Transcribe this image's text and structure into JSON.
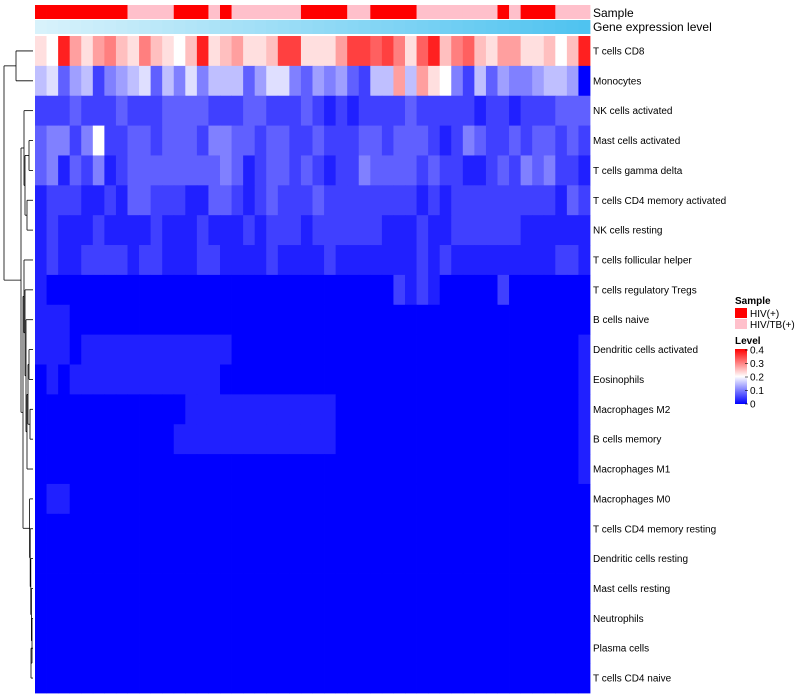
{
  "chart_data": {
    "type": "heatmap",
    "annotation_tracks": [
      "Sample",
      "Gene expression level"
    ],
    "rows": [
      "T cells CD8",
      "Monocytes",
      "NK cells activated",
      "Mast cells activated",
      "T cells gamma delta",
      "T cells CD4 memory activated",
      "NK cells resting",
      "T cells follicular helper",
      "T cells regulatory  Tregs",
      "B cells naive",
      "Dendritic cells activated",
      "Eosinophils",
      "Macrophages M2",
      "B cells memory",
      "Macrophages M1",
      "Macrophages M0",
      "T cells CD4 memory resting",
      "Dendritic cells resting",
      "Mast cells resting",
      "Neutrophils",
      "Plasma cells",
      "T cells CD4 naive"
    ],
    "sample_groups": "HHHHHHHHPPPPHHHPHPPPPPPHHHHPPHHHHPPPPPPPHPHHHPP",
    "matrix": [
      "JIPLJLMKJMKJIKPJKLJJKOOJJJLOONOMJNPKMNKJLLJJKIKP",
      "GHDFGCEFGHDGEHEGGGDFHHEDFEFDCGGLGLJIECGDFEEFGGFA",
      "CCCDCCCDCCCDDDDCCCDDCCCDCBCBCCCCDCCCCCBCCBCCCDDD",
      "DEECEICCDDCDDDCEEDDCDDCCDCCCDDCDDDCBCEDCCDCDDCDC",
      "DEBDCEBCDDDDDDDDEDBCDDCDCBCCEDDDDCDCCBBCDCEDECCB",
      "BCCCBBCBDDCCCBBDDCBCDCCCDCCCCCCCCBCBCCCCCCCCCBDC",
      "BCBBBCBBBBCBBBCBBBCBCCCBCCCCCCBBBCBBCCCCCCBBBBBB",
      "BCBBCCCCBCCBBBCCBBBBCBBBBCBBBBBBBCBCBBBBBBBBBCCB",
      "BAAAAAAAAAAAAAAAAAAAAAAAAAAAAAACBCBAAAAACAAAAAAA",
      "BBBAAAAAAAAAAAAAAAAAAAAAAAAAAAAAAAAAAAAAAAAAAAAA",
      "BBBABBBBBBBBBBBBBAAAAAAAAAAAAAAAAAAAAAAAAAAAAAAB",
      "ABABBBBBBBBBBBBBAAAAAAAAAAAAAAAAAAAAAAAAAAAAAAAB",
      "AAAAAAAAAAAAABBBBBBBBBBBBBAAAAAAAAAAAAAAAAAAAAAB",
      "AAAAAAAAAAAABBBBBBBBBBBBBBAAAAAAAAAAAAAAAAAAAAAB",
      "AAAAAAAAAAAAAAAAAAAAAAAAAAAAAAAAAAAAAAAAAAAAAAAB",
      "ABBAAAAAAAAAAAAAAAAAAAAAAAAAAAAAAAAAAAAAAAAAAAAA",
      "AAAAAAAAAAAAAAAAAAAAAAAAAAAAAAAAAAAAAAAAAAAAAAAA",
      "AAAAAAAAAAAAAAAAAAAAAAAAAAAAAAAAAAAAAAAAAAAAAAAA",
      "AAAAAAAAAAAAAAAAAAAAAAAAAAAAAAAAAAAAAAAAAAAAAAAA",
      "AAAAAAAAAAAAAAAAAAAAAAAAAAAAAAAAAAAAAAAAAAAAAAAA",
      "AAAAAAAAAAAAAAAAAAAAAAAAAAAAAAAAAAAAAAAAAAAAAAAA",
      "AAAAAAAAAAAAAAAAAAAAAAAAAAAAAAAAAAAAAAAAAAAAAAAA"
    ],
    "value_range": [
      0,
      0.4
    ],
    "legend": {
      "sample_title": "Sample",
      "sample_entries": [
        {
          "label": "HIV(+)",
          "color": "#ff0000"
        },
        {
          "label": "HIV/TB(+)",
          "color": "#ffc0cb"
        }
      ],
      "level_title": "Level",
      "level_ticks": [
        "0.4",
        "0.3",
        "0.2",
        "0.1",
        "0"
      ]
    },
    "colors": {
      "low": "#0000ff",
      "mid": "#ffffff",
      "high": "#ff0000",
      "expr_low": "#d8f2fb",
      "expr_high": "#4fc3f0"
    }
  }
}
